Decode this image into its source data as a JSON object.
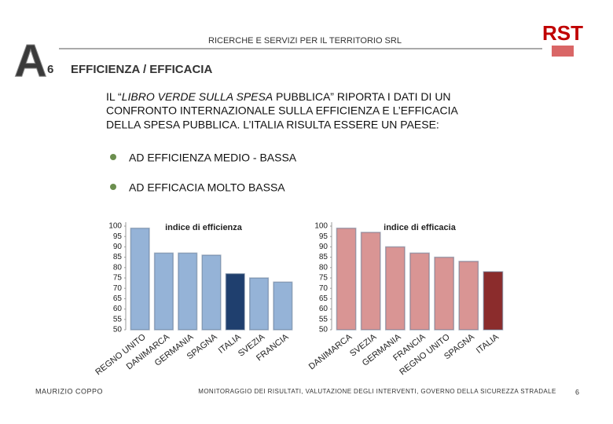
{
  "header": {
    "logo_letter": "A",
    "slide_number": "6",
    "company": "RICERCHE E SERVIZI PER IL TERRITORIO SRL",
    "title": "EFFICIENZA  /  EFFICACIA",
    "brand": "RST"
  },
  "body": {
    "line1": [
      "IL “",
      "LIBRO VERDE SULLA SPESA",
      " PUBBLICA” RIPORTA I DATI DI UN"
    ],
    "line2": "CONFRONTO INTERNAZIONALE SULLA EFFICIENZA E L’EFFICACIA",
    "line3": "DELLA SPESA PUBBLICA.    L’ITALIA RISULTA ESSERE UN PAESE:",
    "bullets": [
      "AD EFFICIENZA MEDIO - BASSA",
      "AD EFFICACIA MOLTO BASSA"
    ]
  },
  "chart_data": [
    {
      "type": "bar",
      "title": "indice di efficienza",
      "categories": [
        "REGNO UNITO",
        "DANIMARCA",
        "GERMANIA",
        "SPAGNA",
        "ITALIA",
        "SVEZIA",
        "FRANCIA"
      ],
      "values": [
        99,
        87,
        87,
        86,
        77,
        75,
        73
      ],
      "colors": [
        "#95b3d7",
        "#95b3d7",
        "#95b3d7",
        "#95b3d7",
        "#1f3f6e",
        "#95b3d7",
        "#95b3d7"
      ],
      "ylim": [
        50,
        100
      ],
      "yticks": [
        50,
        55,
        60,
        65,
        70,
        75,
        80,
        85,
        90,
        95,
        100
      ]
    },
    {
      "type": "bar",
      "title": "indice di efficacia",
      "categories": [
        "DANIMARCA",
        "SVEZIA",
        "GERMANIA",
        "FRANCIA",
        "REGNO UNITO",
        "SPAGNA",
        "ITALIA"
      ],
      "values": [
        99,
        97,
        90,
        87,
        85,
        83,
        78
      ],
      "colors": [
        "#d99594",
        "#d99594",
        "#d99594",
        "#d99594",
        "#d99594",
        "#d99594",
        "#8b2c2c"
      ],
      "ylim": [
        50,
        100
      ],
      "yticks": [
        50,
        55,
        60,
        65,
        70,
        75,
        80,
        85,
        90,
        95,
        100
      ]
    }
  ],
  "footer": {
    "author": "MAURIZIO COPPO",
    "caption": "MONITORAGGIO DEI RISULTATI, VALUTAZIONE DEGLI INTERVENTI, GOVERNO DELLA SICUREZZA STRADALE",
    "page": "6"
  }
}
